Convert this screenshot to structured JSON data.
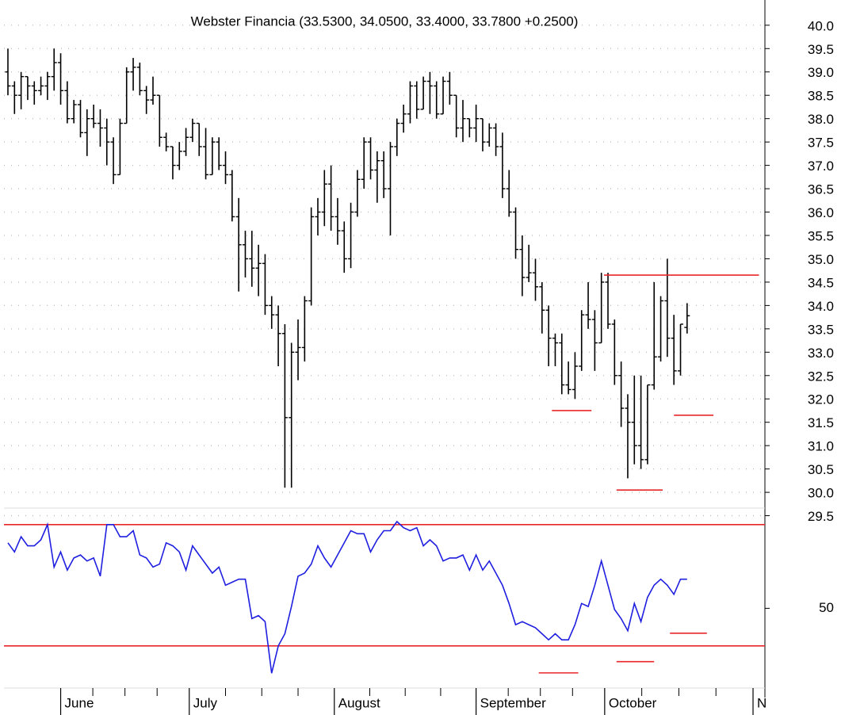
{
  "chart_data": [
    {
      "type": "ohlc",
      "subtitle": "Webster Financia (33.5300, 34.0500, 33.4000, 33.7800 +0.2500)",
      "color": "#000000",
      "ohlc": [
        [
          39.0,
          39.5,
          38.5,
          38.7
        ],
        [
          38.7,
          38.8,
          38.1,
          38.5
        ],
        [
          38.5,
          39.0,
          38.2,
          38.9
        ],
        [
          38.9,
          38.9,
          38.4,
          38.7
        ],
        [
          38.7,
          38.8,
          38.3,
          38.6
        ],
        [
          38.6,
          38.9,
          38.5,
          38.7
        ],
        [
          38.7,
          39.0,
          38.4,
          38.9
        ],
        [
          38.9,
          39.5,
          38.6,
          39.2
        ],
        [
          39.2,
          39.4,
          38.3,
          38.6
        ],
        [
          38.6,
          38.8,
          37.9,
          38.0
        ],
        [
          38.0,
          38.4,
          37.9,
          38.3
        ],
        [
          38.3,
          38.4,
          37.6,
          37.7
        ],
        [
          37.7,
          38.2,
          37.2,
          38.0
        ],
        [
          38.0,
          38.3,
          37.8,
          37.9
        ],
        [
          37.9,
          38.2,
          37.4,
          37.8
        ],
        [
          37.8,
          38.0,
          37.0,
          37.5
        ],
        [
          37.5,
          37.6,
          36.6,
          36.8
        ],
        [
          36.8,
          38.0,
          36.8,
          37.9
        ],
        [
          37.9,
          39.1,
          37.9,
          39.0
        ],
        [
          39.0,
          39.3,
          38.6,
          39.1
        ],
        [
          39.1,
          39.2,
          38.5,
          38.6
        ],
        [
          38.6,
          38.7,
          38.1,
          38.4
        ],
        [
          38.4,
          38.9,
          38.3,
          38.5
        ],
        [
          38.5,
          38.5,
          37.4,
          37.6
        ],
        [
          37.6,
          37.7,
          37.3,
          37.4
        ],
        [
          37.4,
          37.4,
          36.7,
          37.0
        ],
        [
          37.0,
          37.5,
          36.9,
          37.3
        ],
        [
          37.3,
          37.8,
          37.2,
          37.6
        ],
        [
          37.6,
          38.0,
          37.5,
          37.9
        ],
        [
          37.9,
          37.9,
          37.2,
          37.4
        ],
        [
          37.4,
          37.8,
          36.7,
          36.8
        ],
        [
          36.8,
          37.6,
          36.8,
          37.5
        ],
        [
          37.5,
          37.6,
          36.9,
          37.0
        ],
        [
          37.0,
          37.3,
          36.6,
          36.8
        ],
        [
          36.8,
          36.9,
          35.8,
          35.9
        ],
        [
          35.9,
          36.3,
          34.3,
          35.3
        ],
        [
          35.3,
          35.6,
          34.6,
          35.0
        ],
        [
          35.0,
          35.6,
          34.4,
          34.8
        ],
        [
          34.8,
          35.3,
          34.2,
          34.9
        ],
        [
          34.9,
          35.1,
          33.8,
          34.0
        ],
        [
          34.0,
          34.2,
          33.5,
          33.8
        ],
        [
          33.8,
          34.0,
          32.7,
          33.4
        ],
        [
          33.4,
          33.6,
          30.1,
          31.6
        ],
        [
          31.6,
          33.2,
          30.1,
          33.0
        ],
        [
          33.0,
          33.7,
          32.4,
          33.1
        ],
        [
          33.1,
          34.2,
          32.8,
          34.1
        ],
        [
          34.1,
          36.1,
          34.0,
          35.9
        ],
        [
          35.9,
          36.3,
          35.5,
          36.0
        ],
        [
          36.0,
          36.9,
          35.7,
          36.6
        ],
        [
          36.6,
          37.0,
          35.6,
          35.9
        ],
        [
          35.9,
          36.3,
          35.3,
          35.6
        ],
        [
          35.6,
          35.8,
          34.7,
          35.0
        ],
        [
          35.0,
          36.2,
          34.8,
          36.0
        ],
        [
          36.0,
          36.9,
          35.9,
          36.7
        ],
        [
          36.7,
          37.6,
          36.5,
          37.5
        ],
        [
          37.5,
          37.6,
          36.7,
          36.9
        ],
        [
          36.9,
          37.3,
          36.2,
          37.1
        ],
        [
          37.1,
          37.3,
          36.3,
          36.5
        ],
        [
          36.5,
          37.5,
          35.5,
          37.4
        ],
        [
          37.4,
          38.0,
          37.2,
          37.9
        ],
        [
          37.9,
          38.3,
          37.7,
          38.1
        ],
        [
          38.1,
          38.8,
          37.9,
          38.7
        ],
        [
          38.7,
          38.8,
          38.0,
          38.2
        ],
        [
          38.2,
          38.9,
          38.2,
          38.8
        ],
        [
          38.8,
          39.0,
          38.1,
          38.7
        ],
        [
          38.7,
          38.8,
          38.0,
          38.1
        ],
        [
          38.1,
          38.9,
          38.1,
          38.8
        ],
        [
          38.8,
          39.0,
          38.3,
          38.5
        ],
        [
          38.5,
          38.5,
          37.6,
          37.8
        ],
        [
          37.8,
          38.4,
          37.5,
          38.0
        ],
        [
          38.0,
          38.0,
          37.6,
          37.8
        ],
        [
          37.8,
          38.3,
          37.5,
          38.0
        ],
        [
          38.0,
          38.0,
          37.3,
          37.5
        ],
        [
          37.5,
          37.9,
          37.4,
          37.8
        ],
        [
          37.8,
          37.9,
          37.2,
          37.4
        ],
        [
          37.4,
          37.7,
          36.3,
          36.5
        ],
        [
          36.5,
          36.9,
          35.9,
          36.0
        ],
        [
          36.0,
          36.1,
          35.0,
          35.2
        ],
        [
          35.2,
          35.5,
          34.2,
          34.6
        ],
        [
          34.6,
          35.3,
          34.5,
          34.7
        ],
        [
          34.7,
          35.0,
          34.1,
          34.4
        ],
        [
          34.4,
          34.5,
          33.4,
          33.9
        ],
        [
          33.9,
          34.0,
          32.7,
          33.3
        ],
        [
          33.3,
          33.4,
          32.7,
          33.2
        ],
        [
          33.2,
          33.4,
          32.1,
          32.3
        ],
        [
          32.3,
          32.8,
          32.1,
          32.2
        ],
        [
          32.2,
          33.0,
          32.0,
          32.7
        ],
        [
          32.7,
          33.9,
          32.6,
          33.8
        ],
        [
          33.8,
          34.5,
          33.5,
          33.7
        ],
        [
          33.7,
          33.9,
          32.6,
          33.2
        ],
        [
          33.2,
          34.7,
          33.2,
          34.5
        ],
        [
          34.5,
          34.7,
          33.5,
          33.6
        ],
        [
          33.6,
          33.7,
          32.3,
          32.5
        ],
        [
          32.5,
          32.8,
          31.4,
          31.8
        ],
        [
          31.8,
          32.1,
          30.3,
          31.5
        ],
        [
          31.5,
          32.5,
          30.6,
          31.0
        ],
        [
          31.0,
          32.5,
          30.5,
          30.7
        ],
        [
          30.7,
          32.3,
          30.6,
          32.3
        ],
        [
          32.3,
          34.5,
          32.2,
          32.9
        ],
        [
          32.9,
          34.2,
          32.8,
          34.1
        ],
        [
          34.1,
          35.0,
          32.9,
          33.3
        ],
        [
          33.3,
          33.8,
          32.3,
          32.6
        ],
        [
          32.6,
          33.6,
          32.5,
          33.6
        ],
        [
          33.53,
          34.05,
          33.4,
          33.78
        ]
      ],
      "xlim": [
        -0.6,
        114.8
      ],
      "ylim": [
        29.17,
        40.54
      ],
      "yticks": [
        {
          "value": 30,
          "label": "30.0"
        },
        30.5,
        {
          "value": 31,
          "label": "31.0"
        },
        31.5,
        {
          "value": 32,
          "label": "32.0"
        },
        32.5,
        {
          "value": 33,
          "label": "33.0"
        },
        33.5,
        {
          "value": 34,
          "label": "34.0"
        },
        34.5,
        {
          "value": 35,
          "label": "35.0"
        },
        35.5,
        {
          "value": 36,
          "label": "36.0"
        },
        36.5,
        {
          "value": 37,
          "label": "37.0"
        },
        37.5,
        {
          "value": 38,
          "label": "38.0"
        },
        38.5,
        {
          "value": 39,
          "label": "39.0"
        },
        39.5,
        {
          "value": 40,
          "label": "40.0"
        },
        29.5
      ],
      "grid": true,
      "line_color": "#e8262a",
      "segments": [
        {
          "value": 34.65,
          "x": [
            90.4,
            113.9
          ]
        },
        {
          "value": 31.75,
          "x": [
            82.5,
            88.5
          ]
        },
        {
          "value": 30.05,
          "x": [
            92.3,
            99.3
          ]
        },
        {
          "value": 31.65,
          "x": [
            101,
            107
          ]
        }
      ]
    },
    {
      "type": "line",
      "series": [
        {
          "color": "#1f1fe0",
          "values": [
            74,
            71,
            76,
            73,
            73,
            75,
            80,
            66,
            71,
            65,
            69,
            70,
            68,
            69,
            63,
            80,
            80,
            76,
            76,
            78,
            70,
            69,
            66,
            67,
            74,
            73,
            71,
            65,
            73,
            70,
            67,
            64,
            66,
            60,
            61,
            62,
            62,
            49,
            50,
            48,
            31,
            40,
            44,
            53,
            63,
            64,
            67,
            73,
            69,
            66,
            70,
            74,
            78,
            77,
            77,
            71,
            75,
            78,
            78,
            81,
            79,
            78,
            79,
            73,
            75,
            73,
            68,
            69,
            69,
            70,
            65,
            70,
            65,
            68,
            64,
            60,
            54,
            47,
            48,
            47,
            46,
            44,
            42,
            44,
            42,
            42,
            47,
            54,
            53,
            60,
            68,
            60,
            52,
            49,
            45,
            54,
            48,
            56,
            60,
            62,
            60,
            57,
            62,
            62
          ]
        }
      ],
      "xlim": [
        -0.6,
        114.8
      ],
      "ylim": [
        26.1,
        84.4
      ],
      "yticks": [
        {
          "value": 52.4,
          "label": "50"
        }
      ],
      "xticks": [
        {
          "value": 8,
          "label": "June"
        },
        {
          "value": 27.5,
          "label": "July"
        },
        {
          "value": 49.5,
          "label": "August"
        },
        {
          "value": 71,
          "label": "September"
        },
        {
          "value": 90.5,
          "label": "October"
        },
        {
          "value": 113,
          "label": "N"
        }
      ],
      "line_color": "#e8262a",
      "reference_lines": [
        80,
        40
      ],
      "segments": [
        {
          "value": 31.1,
          "x": [
            80.5,
            86.5
          ]
        },
        {
          "value": 34.8,
          "x": [
            92.3,
            98
          ]
        },
        {
          "value": 44.2,
          "x": [
            100.4,
            106
          ]
        }
      ]
    }
  ]
}
